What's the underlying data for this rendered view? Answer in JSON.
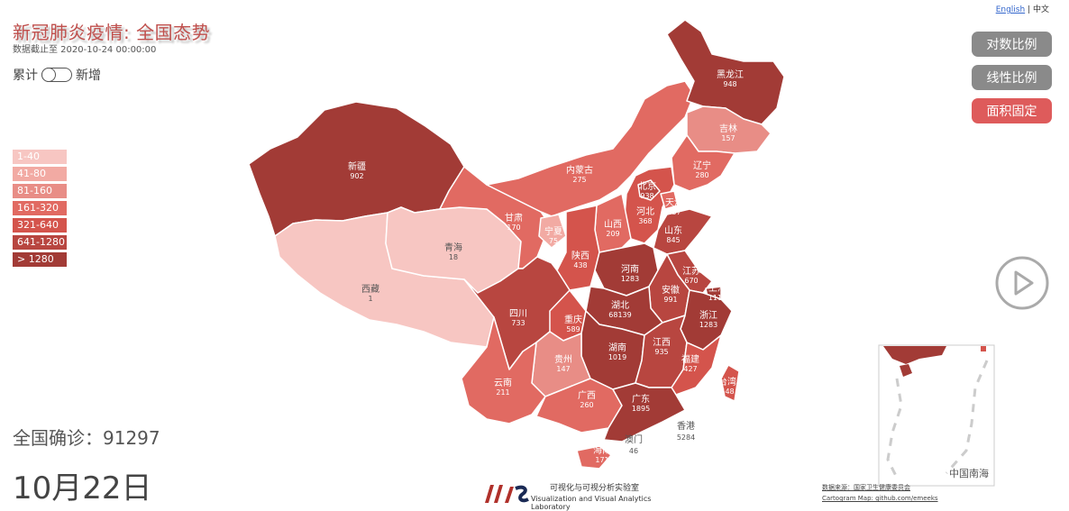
{
  "title": "新冠肺炎疫情: 全国态势",
  "subtitle": "数据截止至 2020-10-24 00:00:00",
  "toggle": {
    "left": "累计",
    "right": "新增"
  },
  "legend": [
    {
      "label": "1-40",
      "color": "#f7c6c2"
    },
    {
      "label": "41-80",
      "color": "#f2aaa3"
    },
    {
      "label": "81-160",
      "color": "#e88d86"
    },
    {
      "label": "161-320",
      "color": "#e16a62"
    },
    {
      "label": "321-640",
      "color": "#d4544c"
    },
    {
      "label": "641-1280",
      "color": "#b84640"
    },
    {
      "label": "> 1280",
      "color": "#a23b36"
    }
  ],
  "lang": {
    "english": "English",
    "sep": "|",
    "chinese": "中文"
  },
  "buttons": {
    "log": "对数比例",
    "linear": "线性比例",
    "area": "面积固定"
  },
  "total": {
    "label": "全国确诊：",
    "value": "91297"
  },
  "date": "10月22日",
  "logo": {
    "cn": "可视化与可视分析实验室",
    "en": "Visualization and Visual Analytics Laboratory"
  },
  "source": {
    "line1": "数据来源：国家卫生健康委员会",
    "line2": "Cartogram Map: github.com/emeeks"
  },
  "inset_label": "中国南海",
  "provinces": {
    "xinjiang": {
      "name": "新疆",
      "value": "902"
    },
    "xizang": {
      "name": "西藏",
      "value": "1"
    },
    "qinghai": {
      "name": "青海",
      "value": "18"
    },
    "gansu": {
      "name": "甘肃",
      "value": "170"
    },
    "neimenggu": {
      "name": "内蒙古",
      "value": "275"
    },
    "heilongjiang": {
      "name": "黑龙江",
      "value": "948"
    },
    "jilin": {
      "name": "吉林",
      "value": "157"
    },
    "liaoning": {
      "name": "辽宁",
      "value": "280"
    },
    "beijing": {
      "name": "北京",
      "value": "938"
    },
    "tianjin": {
      "name": "天津",
      "value": "257"
    },
    "hebei": {
      "name": "河北",
      "value": "368"
    },
    "shanxi": {
      "name": "山西",
      "value": "209"
    },
    "ningxia": {
      "name": "宁夏",
      "value": "75"
    },
    "shaanxi": {
      "name": "陕西",
      "value": "438"
    },
    "shandong": {
      "name": "山东",
      "value": "845"
    },
    "henan": {
      "name": "河南",
      "value": "1283"
    },
    "jiangsu": {
      "name": "江苏",
      "value": "670"
    },
    "shanghai": {
      "name": "上海",
      "value": "1114"
    },
    "anhui": {
      "name": "安徽",
      "value": "991"
    },
    "hubei": {
      "name": "湖北",
      "value": "68139"
    },
    "zhejiang": {
      "name": "浙江",
      "value": "1283"
    },
    "sichuan": {
      "name": "四川",
      "value": "733"
    },
    "chongqing": {
      "name": "重庆",
      "value": "589"
    },
    "hunan": {
      "name": "湖南",
      "value": "1019"
    },
    "jiangxi": {
      "name": "江西",
      "value": "935"
    },
    "guizhou": {
      "name": "贵州",
      "value": "147"
    },
    "fujian": {
      "name": "福建",
      "value": "427"
    },
    "taiwan": {
      "name": "台湾",
      "value": "548"
    },
    "yunnan": {
      "name": "云南",
      "value": "211"
    },
    "guangxi": {
      "name": "广西",
      "value": "260"
    },
    "guangdong": {
      "name": "广东",
      "value": "1895"
    },
    "hongkong": {
      "name": "香港",
      "value": "5284"
    },
    "macau": {
      "name": "澳门",
      "value": "46"
    },
    "hainan": {
      "name": "海南",
      "value": "171"
    }
  }
}
